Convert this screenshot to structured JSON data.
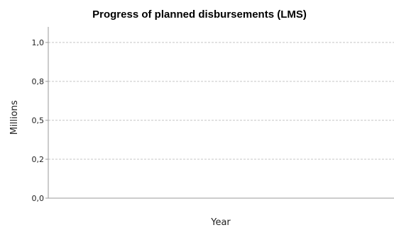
{
  "chart_data": {
    "type": "line",
    "title": "Progress of planned disbursements (LMS)",
    "xlabel": "Year",
    "ylabel": "Millions",
    "ylim": [
      0,
      1.1
    ],
    "y_ticks": [
      {
        "value": 0.0,
        "label": "0,0"
      },
      {
        "value": 0.25,
        "label": "0,2"
      },
      {
        "value": 0.5,
        "label": "0,5"
      },
      {
        "value": 0.75,
        "label": "0,8"
      },
      {
        "value": 1.0,
        "label": "1,0"
      }
    ],
    "grid": true,
    "series": []
  }
}
